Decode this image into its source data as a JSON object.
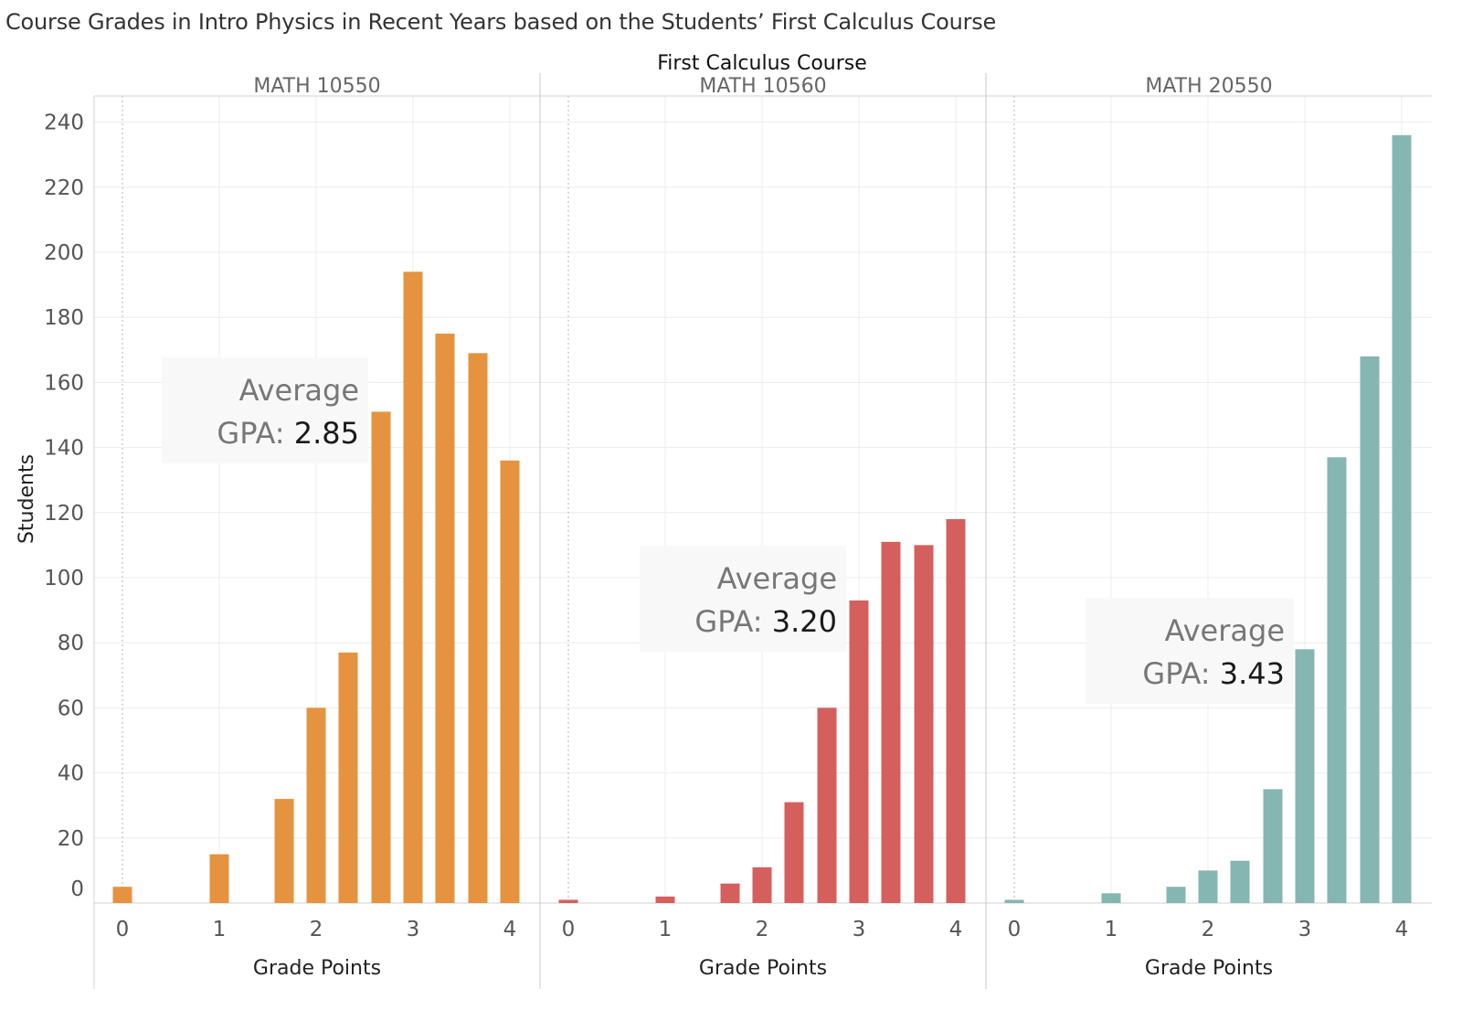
{
  "chart_data": {
    "type": "bar",
    "title": "Course Grades in Intro Physics in Recent Years based on the Students’ First Calculus Course",
    "facet_label": "First Calculus Course",
    "xlabel": "Grade Points",
    "ylabel": "Students",
    "ylim": [
      0,
      240
    ],
    "yticks": [
      0,
      20,
      40,
      60,
      80,
      100,
      120,
      140,
      160,
      180,
      200,
      220,
      240
    ],
    "xticks": [
      0,
      1,
      2,
      3,
      4
    ],
    "xlim": [
      -0.3,
      4.3
    ],
    "grades": [
      0,
      1,
      1.7,
      2,
      2.3,
      2.7,
      3,
      3.3,
      3.7,
      4
    ],
    "annotation_prefix_line1": "Average",
    "annotation_prefix_line2": "GPA: ",
    "panels": [
      {
        "name": "MATH 10550",
        "color": "#e5933f",
        "values": [
          5,
          0,
          15,
          32,
          60,
          77,
          151,
          194,
          175,
          169,
          136
        ],
        "grades": [
          0,
          0.67,
          1,
          1.67,
          2,
          2.33,
          2.67,
          3,
          3.33,
          3.67,
          4
        ],
        "average_gpa": "2.85"
      },
      {
        "name": "MATH 10560",
        "color": "#d45f5c",
        "values": [
          1,
          0,
          2,
          6,
          11,
          31,
          60,
          93,
          111,
          110,
          118
        ],
        "grades": [
          0,
          0.67,
          1,
          1.67,
          2,
          2.33,
          2.67,
          3,
          3.33,
          3.67,
          4
        ],
        "average_gpa": "3.20"
      },
      {
        "name": "MATH 20550",
        "color": "#86b6b2",
        "values": [
          1,
          0,
          3,
          5,
          10,
          13,
          35,
          78,
          137,
          168,
          236
        ],
        "grades": [
          0,
          0.67,
          1,
          1.67,
          2,
          2.33,
          2.67,
          3,
          3.33,
          3.67,
          4
        ],
        "average_gpa": "3.43"
      }
    ]
  }
}
